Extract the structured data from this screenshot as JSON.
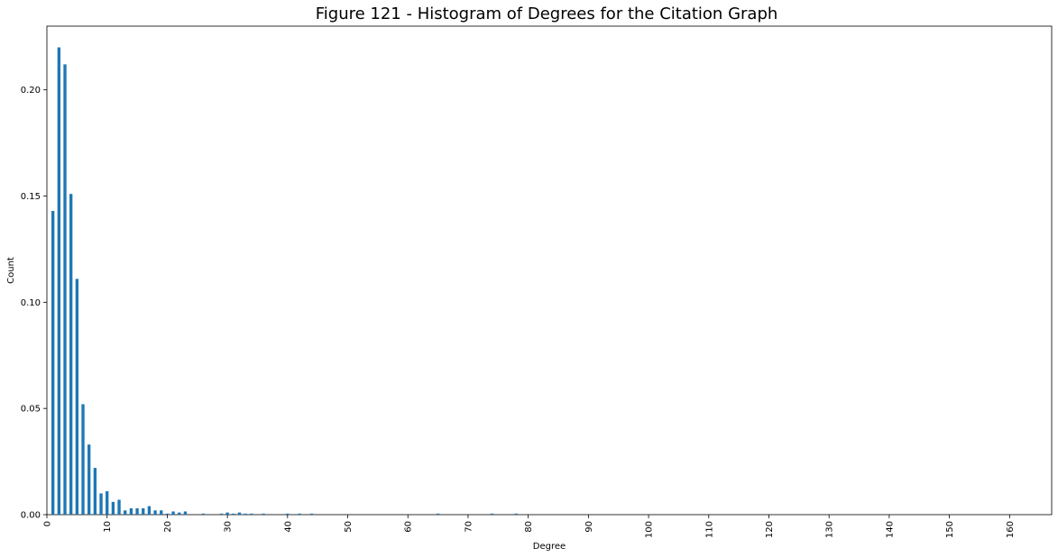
{
  "chart_data": {
    "type": "bar",
    "title": "Figure 121 - Histogram of Degrees for the Citation Graph",
    "xlabel": "Degree",
    "ylabel": "Count",
    "ylim": [
      0,
      0.23
    ],
    "xlim": [
      0,
      167
    ],
    "grid": false,
    "legend": "none",
    "bar_color": "#1f77b4",
    "x": [
      1,
      2,
      3,
      4,
      5,
      6,
      7,
      8,
      9,
      10,
      11,
      12,
      13,
      14,
      15,
      16,
      17,
      18,
      19,
      20,
      21,
      22,
      23,
      26,
      29,
      30,
      31,
      32,
      33,
      34,
      36,
      40,
      42,
      44,
      65,
      74,
      78
    ],
    "values": [
      0.143,
      0.22,
      0.212,
      0.151,
      0.111,
      0.052,
      0.033,
      0.022,
      0.01,
      0.011,
      0.006,
      0.007,
      0.002,
      0.003,
      0.003,
      0.003,
      0.004,
      0.002,
      0.002,
      0.0005,
      0.0015,
      0.001,
      0.0015,
      0.0005,
      0.0005,
      0.001,
      0.0005,
      0.001,
      0.0005,
      0.0005,
      0.0005,
      0.0005,
      0.0005,
      0.0005,
      0.0005,
      0.0005,
      0.0005
    ],
    "y_ticks": [
      "0.00",
      "0.05",
      "0.10",
      "0.15",
      "0.20"
    ],
    "y_tick_values": [
      0,
      0.05,
      0.1,
      0.15,
      0.2
    ],
    "x_ticks": [
      "0",
      "10",
      "20",
      "30",
      "40",
      "50",
      "60",
      "70",
      "80",
      "90",
      "100",
      "110",
      "120",
      "130",
      "140",
      "150",
      "160"
    ],
    "x_tick_values": [
      0,
      10,
      20,
      30,
      40,
      50,
      60,
      70,
      80,
      90,
      100,
      110,
      120,
      130,
      140,
      150,
      160
    ]
  }
}
